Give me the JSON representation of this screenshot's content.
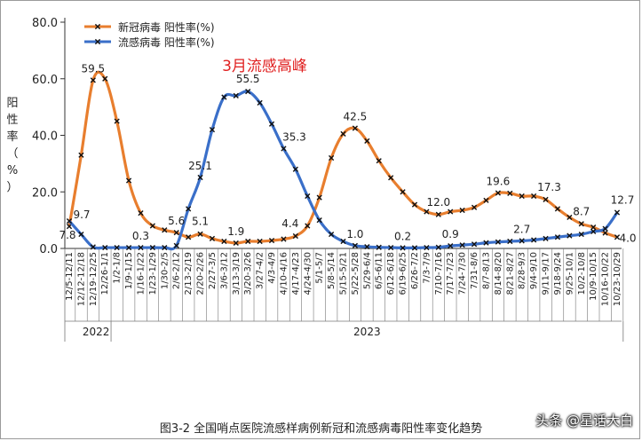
{
  "chart_data": {
    "type": "line",
    "title": "",
    "ylabel": "阳性率（%）",
    "ylim": [
      0,
      80
    ],
    "yticks": [
      "0.0",
      "20.0",
      "40.0",
      "60.0",
      "80.0"
    ],
    "x": [
      "12/5-12/11",
      "12/12-12/18",
      "12/19-12/25",
      "12/26-1/1",
      "1/2-1/8",
      "1/9-1/15",
      "1/16-1/22",
      "1/23-1/29",
      "1/30-2/5",
      "2/6-2/12",
      "2/13-2/19",
      "2/20-2/26",
      "2/27-3/5",
      "3/6-3/12",
      "3/13-3/19",
      "3/20-3/26",
      "3/27-4/2",
      "4/3-4/9",
      "4/10-4/16",
      "4/17-4/23",
      "4/24-4/30",
      "5/1-5/7",
      "5/8-5/14",
      "5/15-5/21",
      "5/22-5/28",
      "5/29-6/4",
      "6/5-6/11",
      "6/12-6/18",
      "6/19-6/25",
      "6/26-7/2",
      "7/3-7/9",
      "7/10-7/16",
      "7/17-7/23",
      "7/24-7/30",
      "7/31-8/6",
      "8/7-8/13",
      "8/14-8/20",
      "8/21-8/27",
      "8/28-9/3",
      "9/4-9/10",
      "9/11-9/17",
      "9/18-9/24",
      "9/25-10/1",
      "10/2-10/8",
      "10/9-10/15",
      "10/16-10/22",
      "10/23-10/29"
    ],
    "year_groups": [
      {
        "label": "2022",
        "start": 0,
        "end": 3
      },
      {
        "label": "2023",
        "start": 4,
        "end": 46
      }
    ],
    "series": [
      {
        "name": "新冠病毒 阳性率(%)",
        "color": "#e87e2e",
        "values": [
          7.8,
          33,
          59.5,
          60,
          45,
          24,
          12.5,
          8,
          6.5,
          5.6,
          4,
          5.1,
          3.5,
          2.5,
          1.9,
          2.5,
          2.5,
          2.8,
          3.3,
          4.4,
          8,
          18,
          32,
          40.5,
          42.5,
          38,
          31,
          25,
          20,
          15.5,
          13,
          12,
          13,
          13.5,
          14.5,
          17,
          19.6,
          19.5,
          18.5,
          18.5,
          17.3,
          14,
          11,
          8.7,
          7.5,
          5.5,
          4.0
        ],
        "labels": [
          {
            "i": 0,
            "text": "7.8"
          },
          {
            "i": 2,
            "text": "59.5"
          },
          {
            "i": 9,
            "text": "5.6"
          },
          {
            "i": 11,
            "text": "5.1"
          },
          {
            "i": 14,
            "text": "1.9"
          },
          {
            "i": 19,
            "text": "4.4"
          },
          {
            "i": 24,
            "text": "42.5"
          },
          {
            "i": 31,
            "text": "12.0"
          },
          {
            "i": 36,
            "text": "19.6"
          },
          {
            "i": 40,
            "text": "17.3"
          },
          {
            "i": 43,
            "text": "8.7"
          },
          {
            "i": 46,
            "text": "4.0"
          }
        ]
      },
      {
        "name": "流感病毒 阳性率(%)",
        "color": "#3a6fc9",
        "values": [
          9.7,
          5,
          0.5,
          0.3,
          0.3,
          0.3,
          0.3,
          0.3,
          0.3,
          1,
          14,
          25.1,
          42,
          53.5,
          54,
          55.5,
          51.5,
          44,
          35.3,
          28,
          18.5,
          10,
          5,
          2.5,
          1.0,
          0.6,
          0.4,
          0.3,
          0.2,
          0.2,
          0.3,
          0.4,
          0.9,
          1.2,
          1.5,
          2,
          2.3,
          2.5,
          2.7,
          3,
          3.5,
          4,
          4.5,
          5,
          6,
          7,
          12.7
        ],
        "labels": [
          {
            "i": 0,
            "text": "9.7"
          },
          {
            "i": 6,
            "text": "0.3"
          },
          {
            "i": 11,
            "text": "25.1"
          },
          {
            "i": 15,
            "text": "55.5"
          },
          {
            "i": 18,
            "text": "35.3"
          },
          {
            "i": 24,
            "text": "1.0"
          },
          {
            "i": 28,
            "text": "0.2"
          },
          {
            "i": 32,
            "text": "0.9"
          },
          {
            "i": 38,
            "text": "2.7"
          },
          {
            "i": 46,
            "text": "12.7"
          }
        ]
      }
    ],
    "annotations": [
      {
        "text": "3月流感高峰",
        "color": "#e02020"
      }
    ],
    "legend_position": "top-left",
    "grid": false
  },
  "caption": "图3-2 全国哨点医院流感样病例新冠和流感病毒阳性率变化趋势",
  "watermark": "头条 @星话大白"
}
